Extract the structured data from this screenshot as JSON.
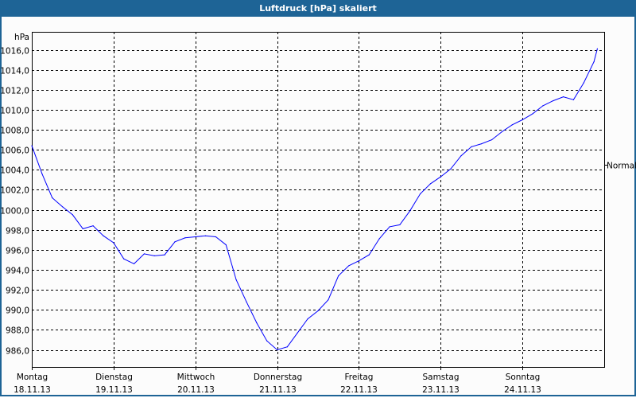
{
  "window": {
    "title": "Luftdruck [hPa] skaliert"
  },
  "chart_data": {
    "type": "line",
    "title": "Luftdruck [hPa] skaliert",
    "ylabel": "hPa",
    "ylim": [
      984.3,
      1017.8
    ],
    "yticks": [
      "986,0",
      "988,0",
      "990,0",
      "992,0",
      "994,0",
      "996,0",
      "998,0",
      "1000,0",
      "1002,0",
      "1004,0",
      "1006,0",
      "1008,0",
      "1010,0",
      "1012,0",
      "1014,0",
      "1016,0"
    ],
    "ytick_values": [
      986,
      988,
      990,
      992,
      994,
      996,
      998,
      1000,
      1002,
      1004,
      1006,
      1008,
      1010,
      1012,
      1014,
      1016
    ],
    "xticks": [
      {
        "day": "Montag",
        "date": "18.11.13"
      },
      {
        "day": "Dienstag",
        "date": "19.11.13"
      },
      {
        "day": "Mittwoch",
        "date": "20.11.13"
      },
      {
        "day": "Donnerstag",
        "date": "21.11.13"
      },
      {
        "day": "Freitag",
        "date": "22.11.13"
      },
      {
        "day": "Samstag",
        "date": "23.11.13"
      },
      {
        "day": "Sonntag",
        "date": "24.11.13"
      }
    ],
    "xlim": [
      "18.11.13 00:00",
      "25.11.13 00:00"
    ],
    "grid": true,
    "reference": {
      "label": "Normal",
      "value": 1004.5
    },
    "series": [
      {
        "color": "#0000ff",
        "x": [
          "18.11.13 00:00",
          "18.11.13 03:00",
          "18.11.13 06:00",
          "18.11.13 09:00",
          "18.11.13 12:00",
          "18.11.13 15:00",
          "18.11.13 18:00",
          "18.11.13 21:00",
          "19.11.13 00:00",
          "19.11.13 03:00",
          "19.11.13 06:00",
          "19.11.13 09:00",
          "19.11.13 12:00",
          "19.11.13 15:00",
          "19.11.13 18:00",
          "19.11.13 21:00",
          "20.11.13 00:00",
          "20.11.13 03:00",
          "20.11.13 06:00",
          "20.11.13 09:00",
          "20.11.13 12:00",
          "20.11.13 15:00",
          "20.11.13 18:00",
          "20.11.13 21:00",
          "21.11.13 00:00",
          "21.11.13 03:00",
          "21.11.13 06:00",
          "21.11.13 09:00",
          "21.11.13 12:00",
          "21.11.13 15:00",
          "21.11.13 18:00",
          "21.11.13 21:00",
          "22.11.13 00:00",
          "22.11.13 03:00",
          "22.11.13 06:00",
          "22.11.13 09:00",
          "22.11.13 12:00",
          "22.11.13 15:00",
          "22.11.13 18:00",
          "22.11.13 21:00",
          "23.11.13 00:00",
          "23.11.13 03:00",
          "23.11.13 06:00",
          "23.11.13 09:00",
          "23.11.13 12:00",
          "23.11.13 15:00",
          "23.11.13 18:00",
          "23.11.13 21:00",
          "24.11.13 00:00",
          "24.11.13 03:00",
          "24.11.13 06:00",
          "24.11.13 09:00",
          "24.11.13 12:00",
          "24.11.13 15:00",
          "24.11.13 18:00",
          "24.11.13 21:00",
          "24.11.13 22:00"
        ],
        "y": [
          1006.4,
          1003.6,
          1001.2,
          1000.3,
          999.5,
          998.1,
          998.4,
          997.4,
          996.7,
          995.1,
          994.6,
          995.6,
          995.4,
          995.5,
          996.8,
          997.2,
          997.3,
          997.4,
          997.3,
          996.5,
          993.0,
          990.8,
          988.7,
          986.9,
          986.0,
          986.3,
          987.7,
          989.1,
          989.9,
          991.0,
          993.4,
          994.4,
          994.9,
          995.5,
          997.1,
          998.3,
          998.5,
          999.9,
          1001.6,
          1002.6,
          1003.3,
          1004.1,
          1005.4,
          1006.3,
          1006.6,
          1007.0,
          1007.8,
          1008.5,
          1009.0,
          1009.6,
          1010.4,
          1010.9,
          1011.3,
          1011.0,
          1012.7,
          1014.8,
          1016.1
        ]
      }
    ]
  }
}
